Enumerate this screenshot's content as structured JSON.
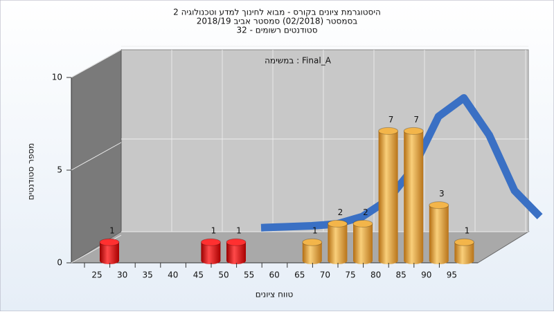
{
  "chart_data": {
    "type": "bar",
    "title": "היסטוגרמת ציונים בקורס - מבוא לחינוך למדע וטכנולוגיה 2",
    "subtitle_lines": [
      "בסמסטר  (02/2018)  סמסטר אביב 2018/19",
      "סטודנטים רשומים - 32"
    ],
    "annotation": "במשימה : Final_A",
    "x_label": "טווח ציונים",
    "y_label": "מספר סטודנטים",
    "categories": [
      "25",
      "30",
      "35",
      "40",
      "45",
      "50",
      "55",
      "60",
      "65",
      "70",
      "75",
      "80",
      "85",
      "90",
      "95"
    ],
    "values": [
      1,
      0,
      0,
      0,
      1,
      1,
      0,
      0,
      1,
      2,
      2,
      7,
      7,
      3,
      1
    ],
    "colors": [
      "red",
      "red",
      "red",
      "red",
      "red",
      "red",
      "orange",
      "orange",
      "orange",
      "orange",
      "orange",
      "orange",
      "orange",
      "orange",
      "orange"
    ],
    "ylim": [
      0,
      10
    ],
    "yticks": [
      0,
      5,
      10
    ],
    "grid": true,
    "curve": {
      "color": "#3a70c4",
      "x": [
        50,
        55,
        60,
        65,
        70,
        75,
        80,
        85,
        90,
        95,
        100,
        105
      ],
      "values": [
        1,
        1.05,
        1.1,
        1.2,
        1.6,
        2.5,
        4.2,
        7,
        8,
        6,
        3,
        1.6
      ]
    }
  }
}
